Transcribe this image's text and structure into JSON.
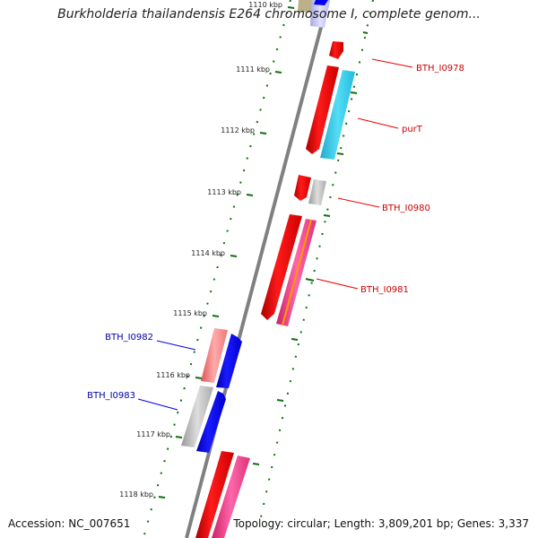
{
  "title": "Burkholderia thailandensis E264 chromosome I, complete genom...",
  "footer": {
    "accession": "Accession: NC_007651",
    "summary": "Topology: circular; Length: 3,809,201 bp; Genes: 3,337"
  },
  "ticks": [
    "1110 kbp",
    "1111 kbp",
    "1112 kbp",
    "1113 kbp",
    "1114 kbp",
    "1115 kbp",
    "1116 kbp",
    "1117 kbp",
    "1118 kbp"
  ],
  "gene_labels": [
    {
      "name": "BTH_I0978",
      "strand": "forward",
      "color": "#cc0000"
    },
    {
      "name": "purT",
      "strand": "forward",
      "color": "#cc0000"
    },
    {
      "name": "BTH_I0980",
      "strand": "forward",
      "color": "#cc0000"
    },
    {
      "name": "BTH_I0981",
      "strand": "forward",
      "color": "#cc0000"
    },
    {
      "name": "BTH_I0982",
      "strand": "reverse",
      "color": "#0000aa"
    },
    {
      "name": "BTH_I0983",
      "strand": "reverse",
      "color": "#0000aa"
    }
  ],
  "colors": {
    "backbone": "#808080",
    "tick_marks": "#107010",
    "gene_red": "#ee0000",
    "gene_blue": "#0000ee",
    "gene_cyan": "#33ccee",
    "gene_gray": "#b8b8b8",
    "gene_pink": "#ee4488",
    "gene_orange": "#ff9900",
    "gene_salmon": "#ee7777",
    "gene_lavender": "#c8c8ee",
    "gene_olive": "#bbb088"
  }
}
